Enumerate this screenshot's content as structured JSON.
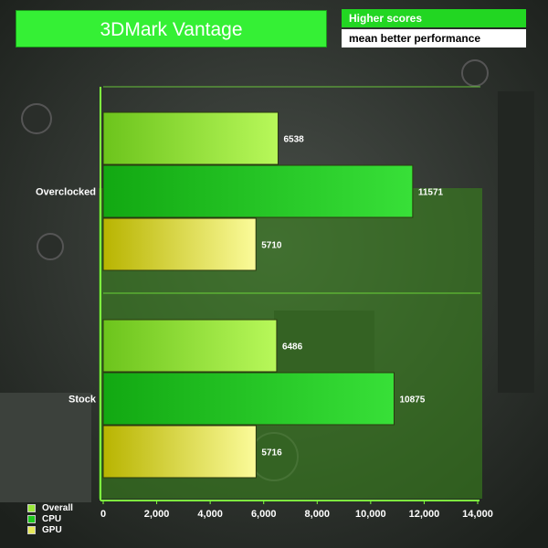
{
  "header": {
    "title": "3DMark Vantage",
    "note_line1": "Higher scores",
    "note_line2": "mean better performance"
  },
  "chart_data": {
    "type": "bar",
    "orientation": "horizontal",
    "title": "3DMark Vantage",
    "categories": [
      "Overclocked",
      "Stock"
    ],
    "series": [
      {
        "name": "Overall",
        "color": "#9ae83a",
        "values": [
          6538,
          6486
        ]
      },
      {
        "name": "CPU",
        "color": "#1ec81e",
        "values": [
          11571,
          10875
        ]
      },
      {
        "name": "GPU",
        "color": "#e6e85a",
        "values": [
          5710,
          5716
        ]
      }
    ],
    "xlim": [
      0,
      14000
    ],
    "xticks": [
      0,
      2000,
      4000,
      6000,
      8000,
      10000,
      12000,
      14000
    ],
    "xtick_labels": [
      "0",
      "2,000",
      "4,000",
      "6,000",
      "8,000",
      "10,000",
      "12,000",
      "14,000"
    ],
    "legend_position": "bottom-left",
    "grid": false
  },
  "colors": {
    "accent_green": "#35f035",
    "axis_green": "#7fff3f"
  }
}
